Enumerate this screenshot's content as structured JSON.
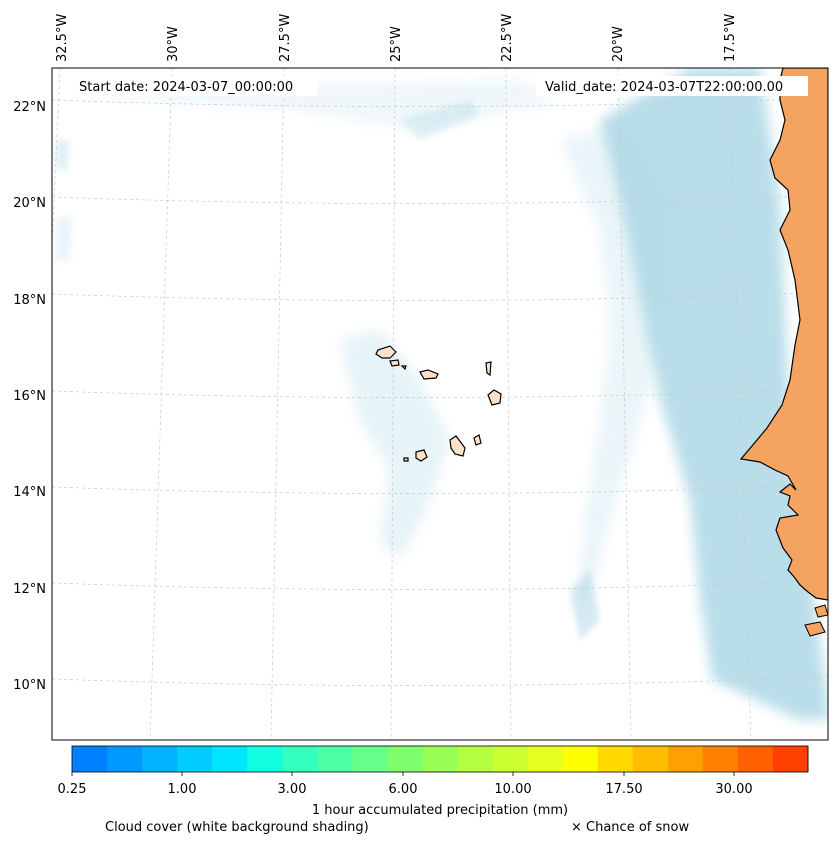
{
  "header": {
    "start_date": "Start date: 2024-03-07_00:00:00",
    "valid_date": "Valid_date: 2024-03-07T22:00:00.00"
  },
  "axes": {
    "lon_labels": [
      "32.5°W",
      "30°W",
      "27.5°W",
      "25°W",
      "22.5°W",
      "20°W",
      "17.5°W"
    ],
    "lat_labels": [
      "22°N",
      "20°N",
      "18°N",
      "16°N",
      "14°N",
      "12°N",
      "10°N"
    ]
  },
  "colorbar": {
    "colors": [
      "#0080ff",
      "#0099ff",
      "#00b2ff",
      "#00ccff",
      "#00e5ff",
      "#11ffe0",
      "#33ffc0",
      "#4dffa6",
      "#66ff8a",
      "#80ff6e",
      "#99ff55",
      "#b3ff40",
      "#ccff30",
      "#e5ff20",
      "#ffff00",
      "#ffd900",
      "#ffbf00",
      "#ff9f00",
      "#ff8000",
      "#ff6000",
      "#ff4000"
    ],
    "tick_labels": [
      "0.25",
      "1.00",
      "3.00",
      "6.00",
      "10.00",
      "17.50",
      "30.00"
    ],
    "title": "1 hour accumulated precipitation (mm)"
  },
  "legend": {
    "cloud_cover": "Cloud cover (white background shading)",
    "snow": "× Chance of snow"
  },
  "style": {
    "land_color": "#f4a460",
    "island_color": "#fde2c8",
    "cloud_color": "#add8e6"
  }
}
